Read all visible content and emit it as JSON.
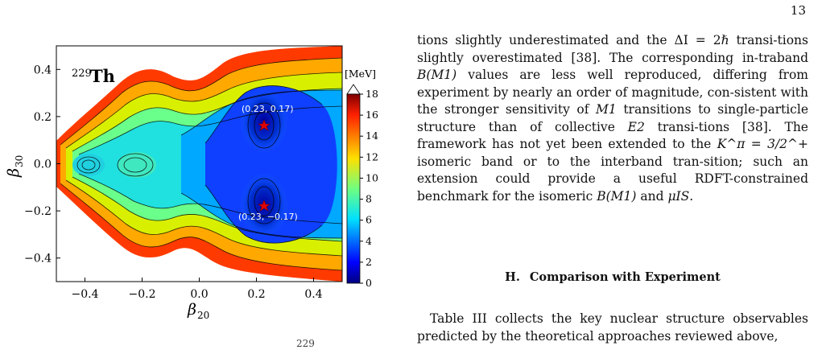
{
  "page_number": "13",
  "figure": {
    "nucleus_mass": "229",
    "nucleus_symbol": "Th",
    "colorbar_unit": "[MeV]",
    "colorbar_ticks": [
      "0",
      "2",
      "4",
      "6",
      "8",
      "10",
      "12",
      "14",
      "16",
      "18"
    ],
    "x_label": "β",
    "x_label_sub": "20",
    "y_label": "β",
    "y_label_sub": "30",
    "x_ticks": [
      "−0.4",
      "−0.2",
      "0.0",
      "0.2",
      "0.4"
    ],
    "y_ticks": [
      "0.4",
      "0.2",
      "0.0",
      "−0.2",
      "−0.4"
    ],
    "minima_labels": [
      "(0.23, 0.17)",
      "(0.23, −0.17)"
    ]
  },
  "chart_data": {
    "type": "heatmap",
    "xlabel": "β20",
    "ylabel": "β30",
    "xlim": [
      -0.5,
      0.5
    ],
    "ylim": [
      -0.5,
      0.5
    ],
    "zlim": [
      0,
      18
    ],
    "colorbar_label": "[MeV]",
    "minima": [
      {
        "x": 0.23,
        "y": 0.17,
        "label": "(0.23, 0.17)"
      },
      {
        "x": 0.23,
        "y": -0.17,
        "label": "(0.23, −0.17)"
      }
    ]
  },
  "text": {
    "p1_a": "tions slightly underestimated and the ΔI = 2ℏ transi-tions slightly overestimated [38]. The corresponding in-traband ",
    "p1_b": "B(M1)",
    "p1_c": " values are less well reproduced, differing from experiment by nearly an order of magnitude, con-sistent with the stronger sensitivity of ",
    "p1_d": "M1",
    "p1_e": " transitions to single-particle structure than of collective ",
    "p1_f": "E2",
    "p1_g": " transi-tions [38]. The framework has not yet been extended to the ",
    "p1_h": "K^π = 3/2^+",
    "p1_i": " isomeric band or to the interband tran-sition; such an extension could provide a useful RDFT-constrained benchmark for the isomeric ",
    "p1_j": "B(M1)",
    "p1_k": " and ",
    "p1_l": "μIS",
    "p1_m": ".",
    "section_number": "H.",
    "section_title": "Comparison with Experiment",
    "p2": "Table III collects the key nuclear structure observables predicted by the theoretical approaches reviewed above,",
    "caption_fragment": "229"
  }
}
